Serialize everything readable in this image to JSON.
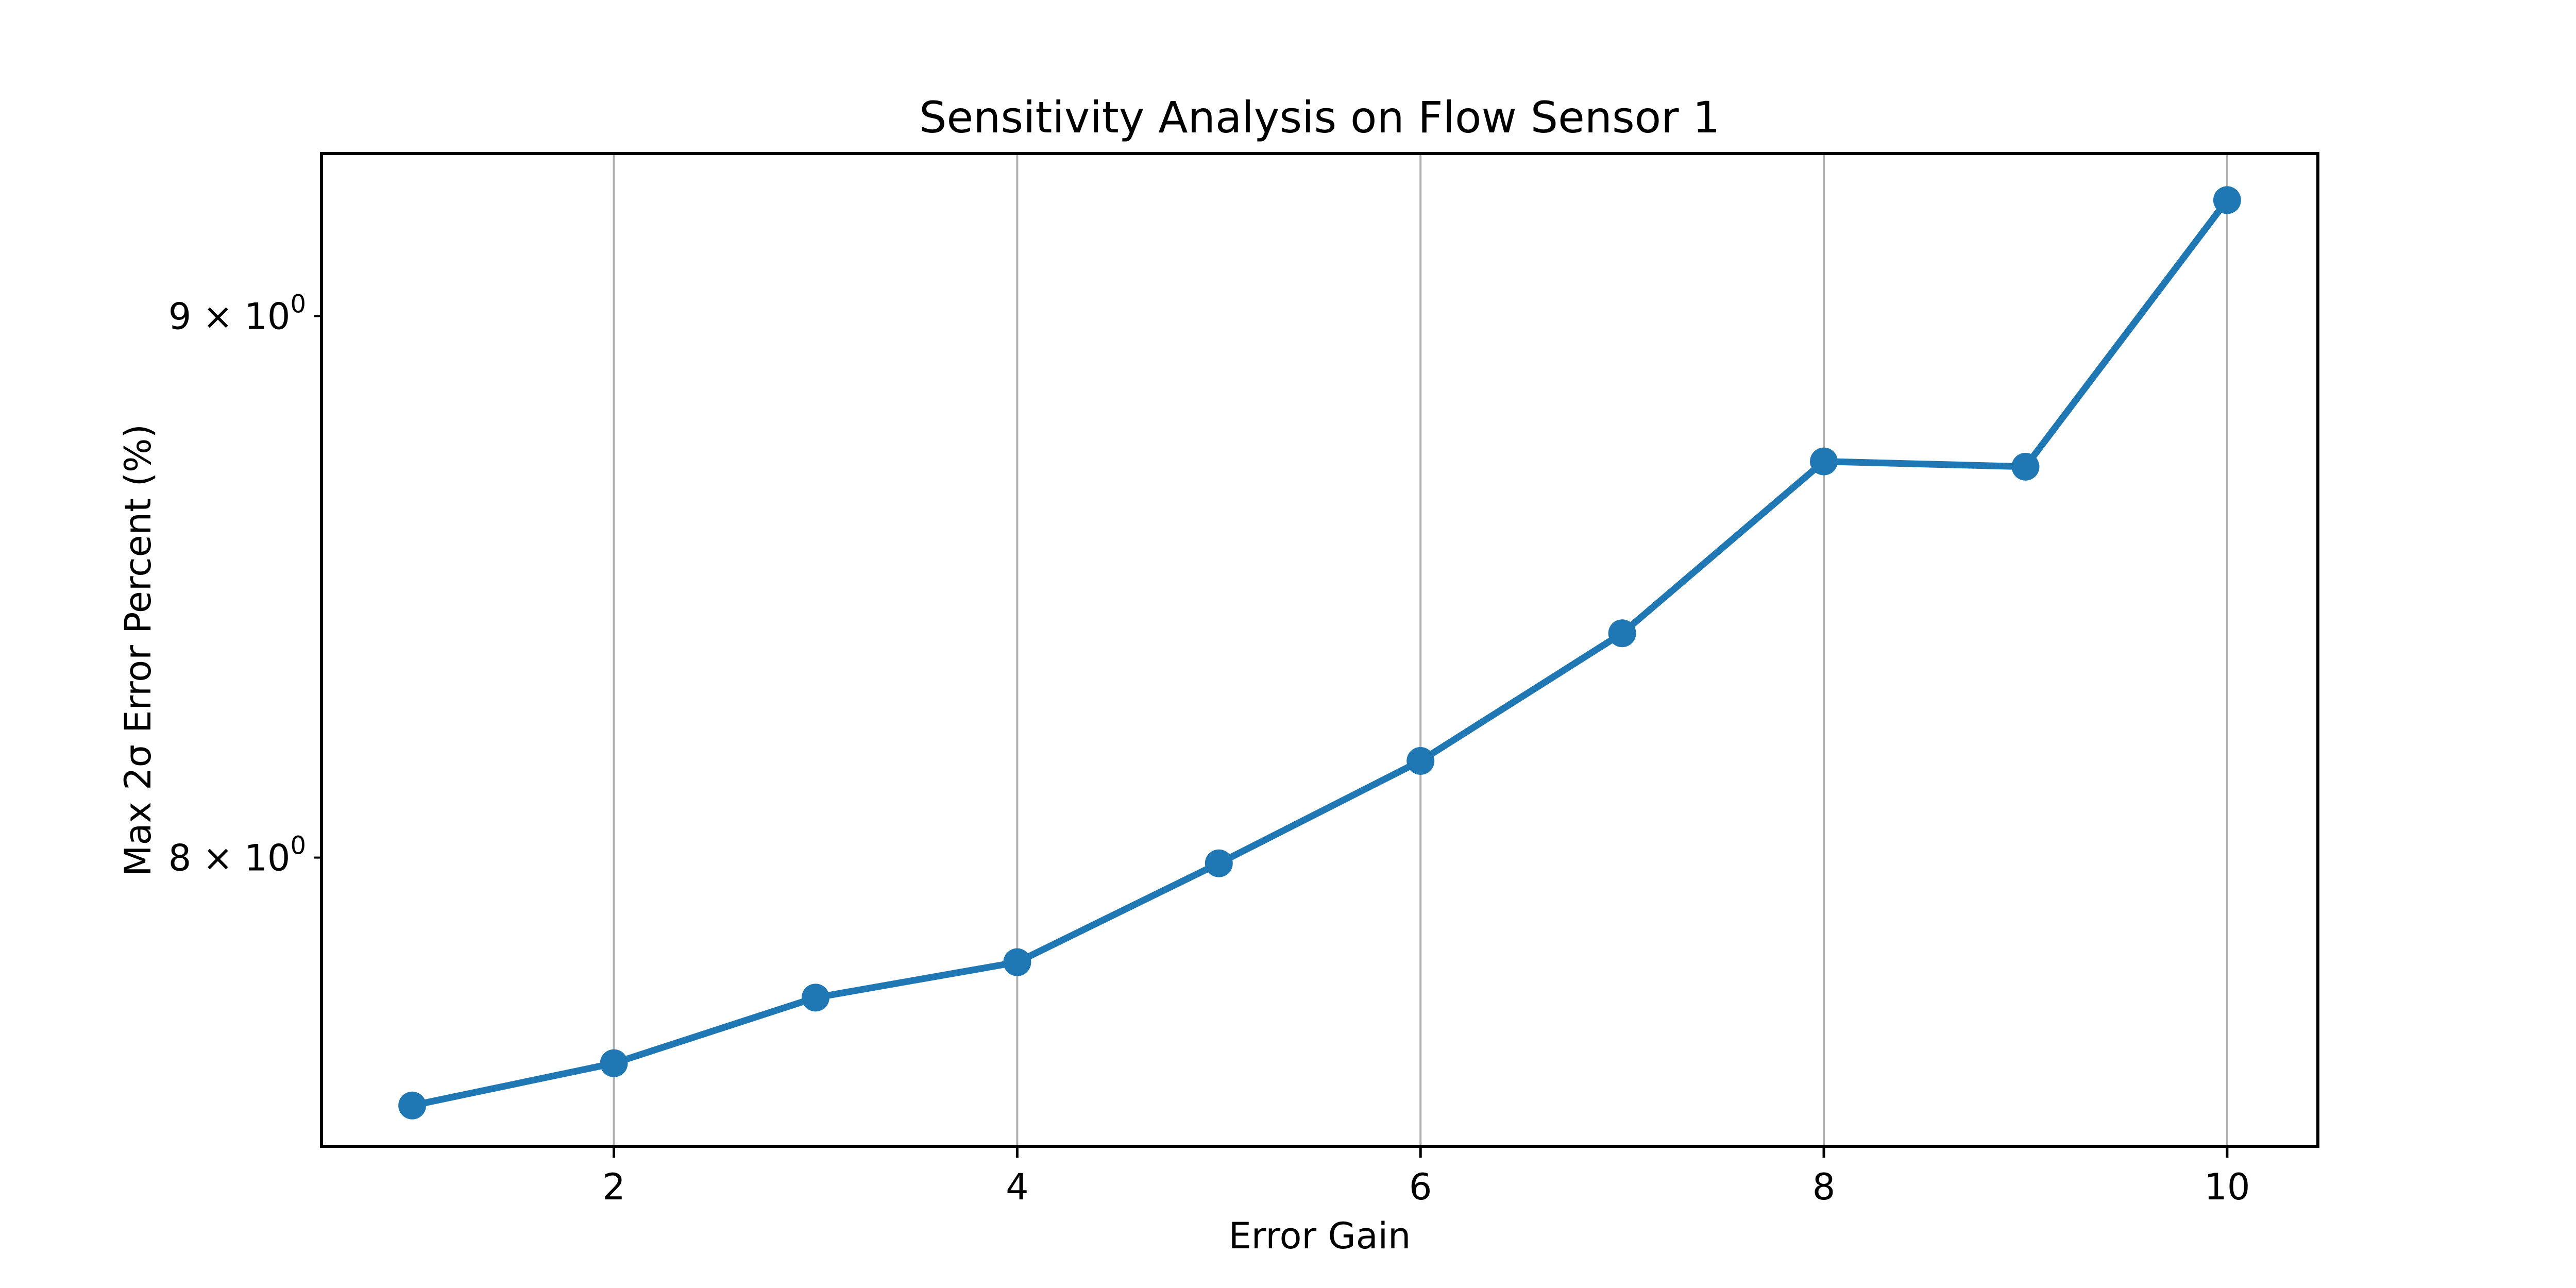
{
  "chart_data": {
    "type": "line",
    "title": "Sensitivity Analysis on Flow Sensor 1",
    "xlabel": "Error Gain",
    "ylabel": "Max 2σ Error Percent (%)",
    "x": [
      1,
      2,
      3,
      4,
      5,
      6,
      7,
      8,
      9,
      10
    ],
    "y": [
      7.58,
      7.65,
      7.76,
      7.82,
      7.99,
      8.17,
      8.4,
      8.72,
      8.71,
      9.23
    ],
    "marker": "circle",
    "xlim": [
      0.55,
      10.45
    ],
    "ylim": [
      7.513,
      9.324
    ],
    "yscale": "log",
    "xticks": [
      2,
      4,
      6,
      8,
      10
    ],
    "yticks": [
      {
        "value": 8,
        "base": "8 × 10",
        "exp": "0"
      },
      {
        "value": 9,
        "base": "9 × 10",
        "exp": "0"
      }
    ],
    "grid": "vertical-only",
    "legend": "none",
    "line_color": "#1f77b4",
    "grid_color": "#b0b0b0",
    "spine_color": "#000000",
    "tick_label_color": "#000000",
    "background": "#ffffff"
  }
}
